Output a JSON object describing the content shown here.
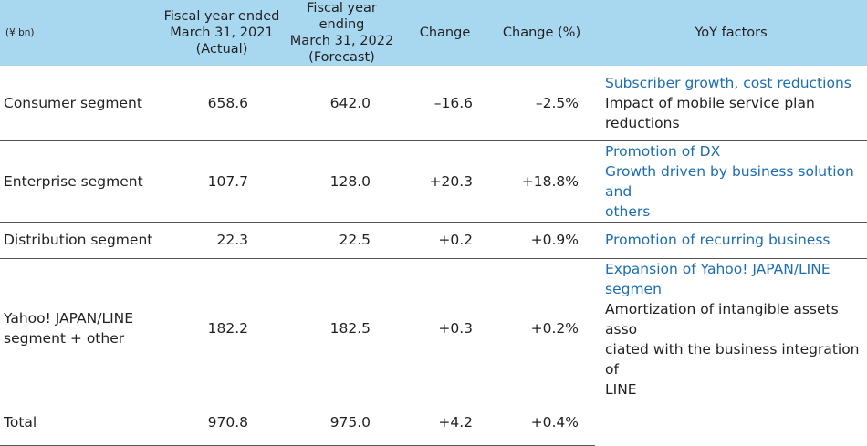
{
  "table": {
    "unit": "(¥ bn)",
    "headers": {
      "actual": [
        "Fiscal year ended",
        "March 31, 2021",
        "(Actual)"
      ],
      "forecast": [
        "Fiscal year ending",
        "March 31, 2022",
        "(Forecast)"
      ],
      "change": "Change",
      "change_pct": "Change (%)",
      "factors": "YoY factors"
    },
    "rows": [
      {
        "segment": [
          "Consumer segment"
        ],
        "actual": "658.6",
        "forecast": "642.0",
        "change": "–16.6",
        "change_pct": "–2.5%",
        "factors_blue": [
          "Subscriber growth, cost reductions"
        ],
        "factors_dark": [
          "Impact of mobile service plan",
          "reductions"
        ]
      },
      {
        "segment": [
          "Enterprise segment"
        ],
        "actual": "107.7",
        "forecast": "128.0",
        "change": "+20.3",
        "change_pct": "+18.8%",
        "factors_blue": [
          "Promotion of DX",
          "Growth driven by business solution and",
          "others"
        ],
        "factors_dark": []
      },
      {
        "segment": [
          "Distribution segment"
        ],
        "actual": "22.3",
        "forecast": "22.5",
        "change": "+0.2",
        "change_pct": "+0.9%",
        "factors_blue": [
          "Promotion of recurring business"
        ],
        "factors_dark": []
      },
      {
        "segment": [
          "Yahoo! JAPAN/LINE",
          "segment + other"
        ],
        "actual": "182.2",
        "forecast": "182.5",
        "change": "+0.3",
        "change_pct": "+0.2%",
        "factors_blue": [
          "Expansion of Yahoo! JAPAN/LINE",
          "segmen"
        ],
        "factors_dark": [
          "Amortization of intangible assets asso",
          "ciated with the business integration of",
          "LINE"
        ]
      }
    ],
    "total": {
      "label": "Total",
      "actual": "970.8",
      "forecast": "975.0",
      "change": "+4.2",
      "change_pct": "+0.4%"
    }
  }
}
